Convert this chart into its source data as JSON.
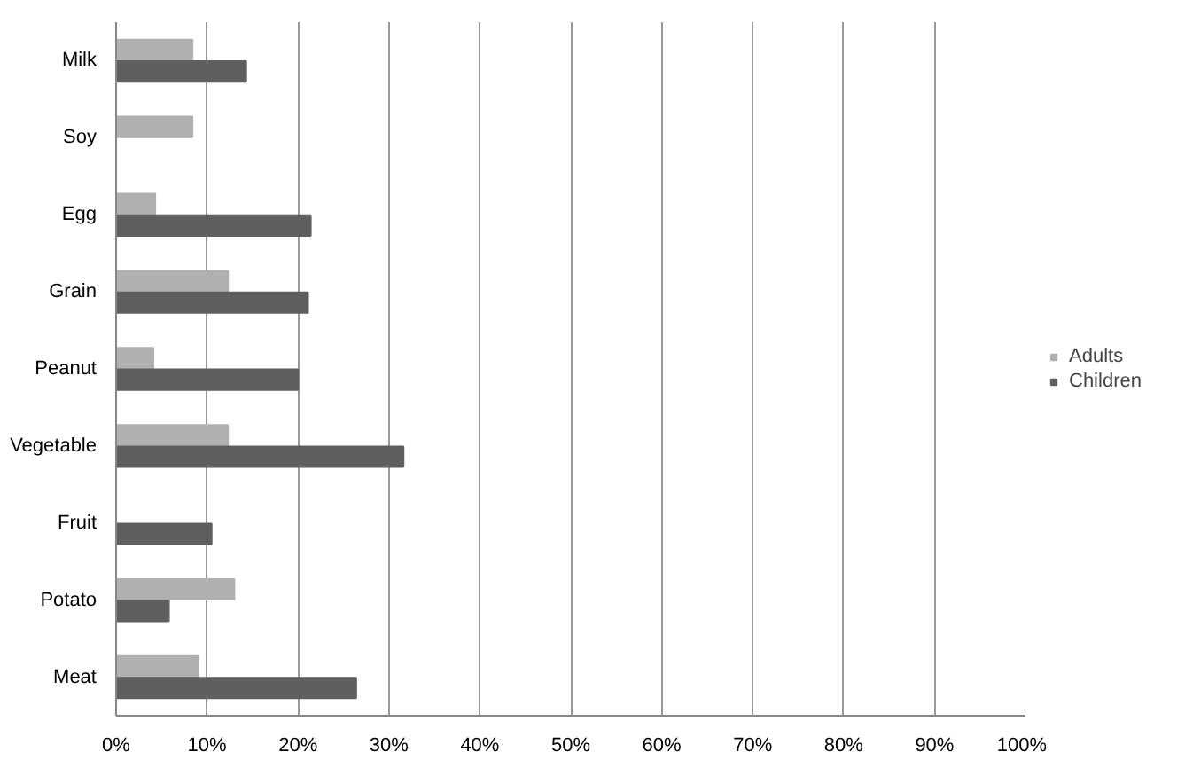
{
  "chart_data": {
    "type": "bar",
    "orientation": "horizontal",
    "categories": [
      "Milk",
      "Soy",
      "Egg",
      "Grain",
      "Peanut",
      "Vegetable",
      "Fruit",
      "Potato",
      "Meat"
    ],
    "series": [
      {
        "name": "Adults",
        "color": "#b0b0b0",
        "values": [
          8.4,
          8.4,
          4.3,
          12.3,
          4.1,
          12.3,
          null,
          13.0,
          9.0
        ]
      },
      {
        "name": "Children",
        "color": "#5f5f5f",
        "values": [
          14.3,
          null,
          21.4,
          21.1,
          20.0,
          31.6,
          10.5,
          5.8,
          26.4
        ]
      }
    ],
    "xlim": [
      0,
      100
    ],
    "xticks": [
      {
        "value": 0,
        "label": "0%"
      },
      {
        "value": 10,
        "label": "10%"
      },
      {
        "value": 20,
        "label": "20%"
      },
      {
        "value": 30,
        "label": "30%"
      },
      {
        "value": 40,
        "label": "40%"
      },
      {
        "value": 50,
        "label": "50%"
      },
      {
        "value": 60,
        "label": "60%"
      },
      {
        "value": 70,
        "label": "70%"
      },
      {
        "value": 80,
        "label": "80%"
      },
      {
        "value": 90,
        "label": "90%"
      },
      {
        "value": 100,
        "label": "100%"
      }
    ],
    "grid": "x",
    "legend": "right"
  }
}
